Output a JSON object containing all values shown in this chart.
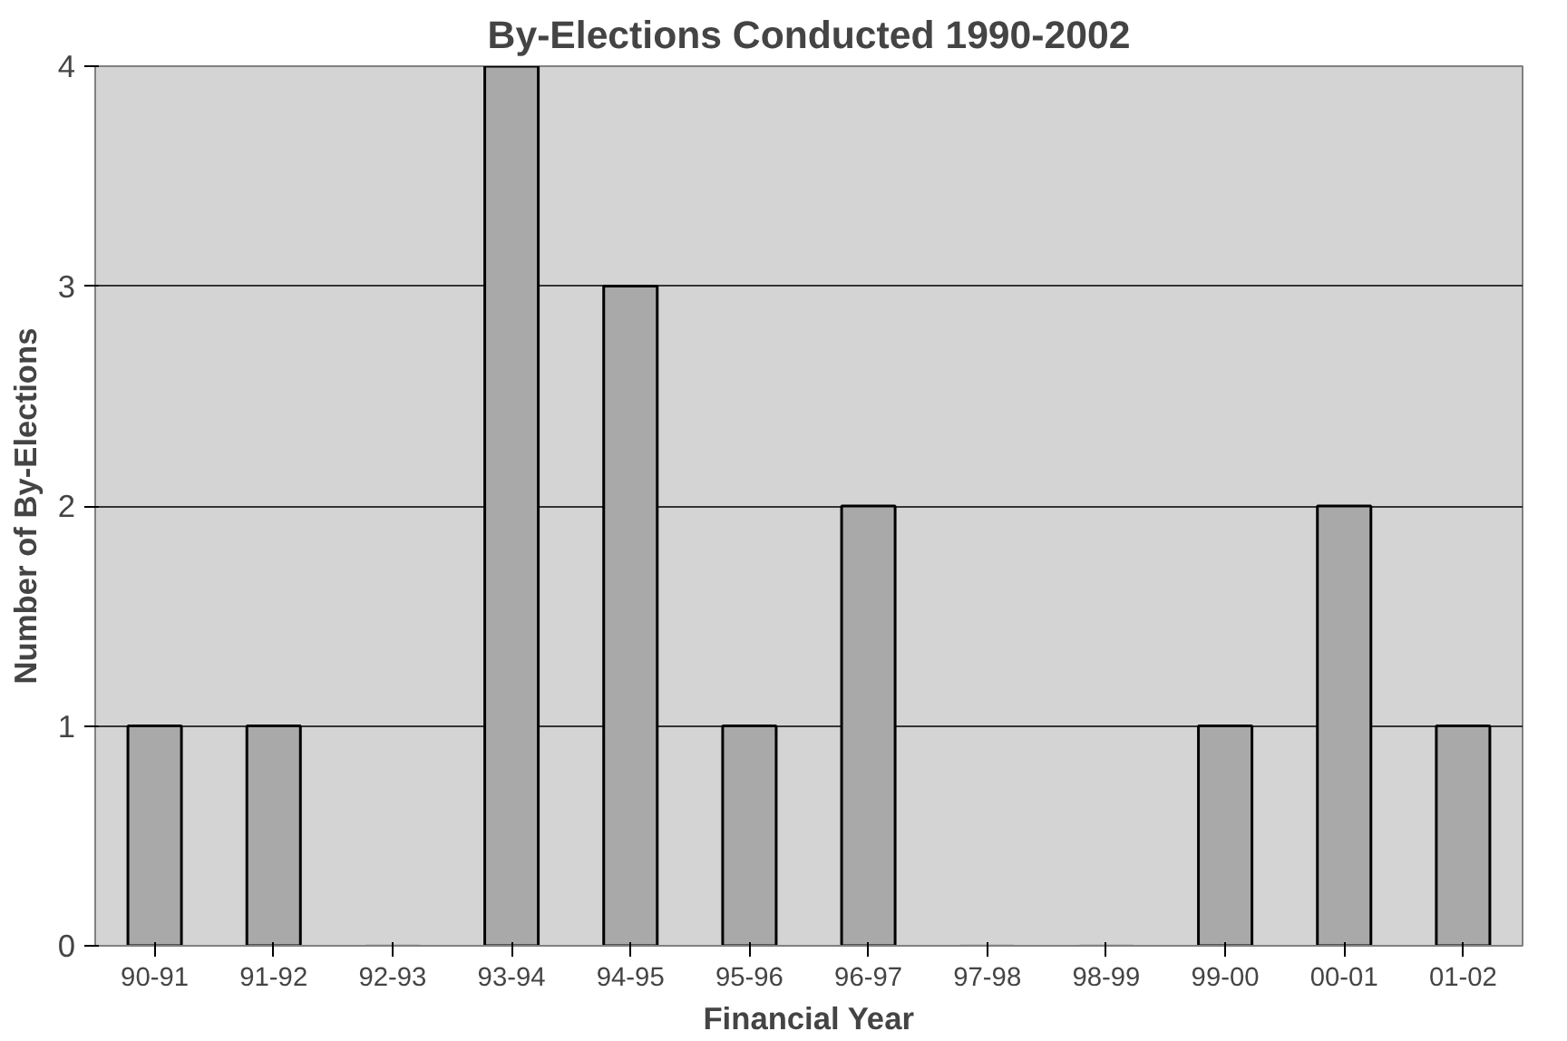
{
  "chart_data": {
    "type": "bar",
    "title": "By-Elections Conducted 1990-2002",
    "xlabel": "Financial Year",
    "ylabel": "Number of By-Elections",
    "categories": [
      "90-91",
      "91-92",
      "92-93",
      "93-94",
      "94-95",
      "95-96",
      "96-97",
      "97-98",
      "98-99",
      "99-00",
      "00-01",
      "01-02"
    ],
    "values": [
      1,
      1,
      0,
      4,
      3,
      1,
      2,
      0,
      0,
      1,
      2,
      1
    ],
    "color": "#a9a9a9",
    "ylim": [
      0,
      4
    ],
    "yticks": [
      0,
      1,
      2,
      3,
      4
    ],
    "grid": "y"
  }
}
